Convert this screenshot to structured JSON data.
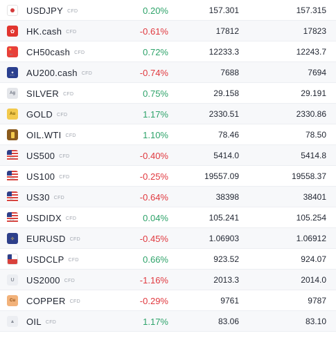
{
  "rows": [
    {
      "symbol": "USDJPY",
      "type": "CFD",
      "change": "0.20%",
      "bid": "157.301",
      "ask": "157.315",
      "icon": "japan-flag-icon",
      "sub": ""
    },
    {
      "symbol": "HK.cash",
      "type": "CFD",
      "change": "-0.61%",
      "bid": "17812",
      "ask": "17823",
      "icon": "hong-kong-flag-icon",
      "sub": ""
    },
    {
      "symbol": "CH50cash",
      "type": "CFD",
      "change": "0.72%",
      "bid": "12233.3",
      "ask": "12243.7",
      "icon": "china-flag-icon",
      "sub": "50"
    },
    {
      "symbol": "AU200.cash",
      "type": "CFD",
      "change": "-0.74%",
      "bid": "7688",
      "ask": "7694",
      "icon": "australia-flag-icon",
      "sub": "200"
    },
    {
      "symbol": "SILVER",
      "type": "CFD",
      "change": "0.75%",
      "bid": "29.158",
      "ask": "29.191",
      "icon": "silver-icon",
      "sub": ""
    },
    {
      "symbol": "GOLD",
      "type": "CFD",
      "change": "1.17%",
      "bid": "2330.51",
      "ask": "2330.86",
      "icon": "gold-icon",
      "sub": ""
    },
    {
      "symbol": "OIL.WTI",
      "type": "CFD",
      "change": "1.10%",
      "bid": "78.46",
      "ask": "78.50",
      "icon": "oil-wti-icon",
      "sub": ""
    },
    {
      "symbol": "US500",
      "type": "CFD",
      "change": "-0.40%",
      "bid": "5414.0",
      "ask": "5414.8",
      "icon": "us-flag-icon",
      "sub": "500"
    },
    {
      "symbol": "US100",
      "type": "CFD",
      "change": "-0.25%",
      "bid": "19557.09",
      "ask": "19558.37",
      "icon": "us-flag-icon",
      "sub": "100"
    },
    {
      "symbol": "US30",
      "type": "CFD",
      "change": "-0.64%",
      "bid": "38398",
      "ask": "38401",
      "icon": "us-flag-icon",
      "sub": "30"
    },
    {
      "symbol": "USDIDX",
      "type": "CFD",
      "change": "0.04%",
      "bid": "105.241",
      "ask": "105.254",
      "icon": "us-flag-icon",
      "sub": "IDX"
    },
    {
      "symbol": "EURUSD",
      "type": "CFD",
      "change": "-0.45%",
      "bid": "1.06903",
      "ask": "1.06912",
      "icon": "eu-flag-icon",
      "sub": ""
    },
    {
      "symbol": "USDCLP",
      "type": "CFD",
      "change": "0.66%",
      "bid": "923.52",
      "ask": "924.07",
      "icon": "chile-flag-icon",
      "sub": ""
    },
    {
      "symbol": "US2000",
      "type": "CFD",
      "change": "-1.16%",
      "bid": "2013.3",
      "ask": "2014.0",
      "icon": "us2000-icon",
      "sub": ""
    },
    {
      "symbol": "COPPER",
      "type": "CFD",
      "change": "-0.29%",
      "bid": "9761",
      "ask": "9787",
      "icon": "copper-icon",
      "sub": ""
    },
    {
      "symbol": "OIL",
      "type": "CFD",
      "change": "1.17%",
      "bid": "83.06",
      "ask": "83.10",
      "icon": "oil-icon",
      "sub": ""
    }
  ],
  "icon_labels": {
    "silver": "Ag",
    "gold": "Au",
    "copper": "Cu",
    "us2000": "U"
  },
  "colors": {
    "up": "#2ea36a",
    "down": "#e0383e"
  }
}
